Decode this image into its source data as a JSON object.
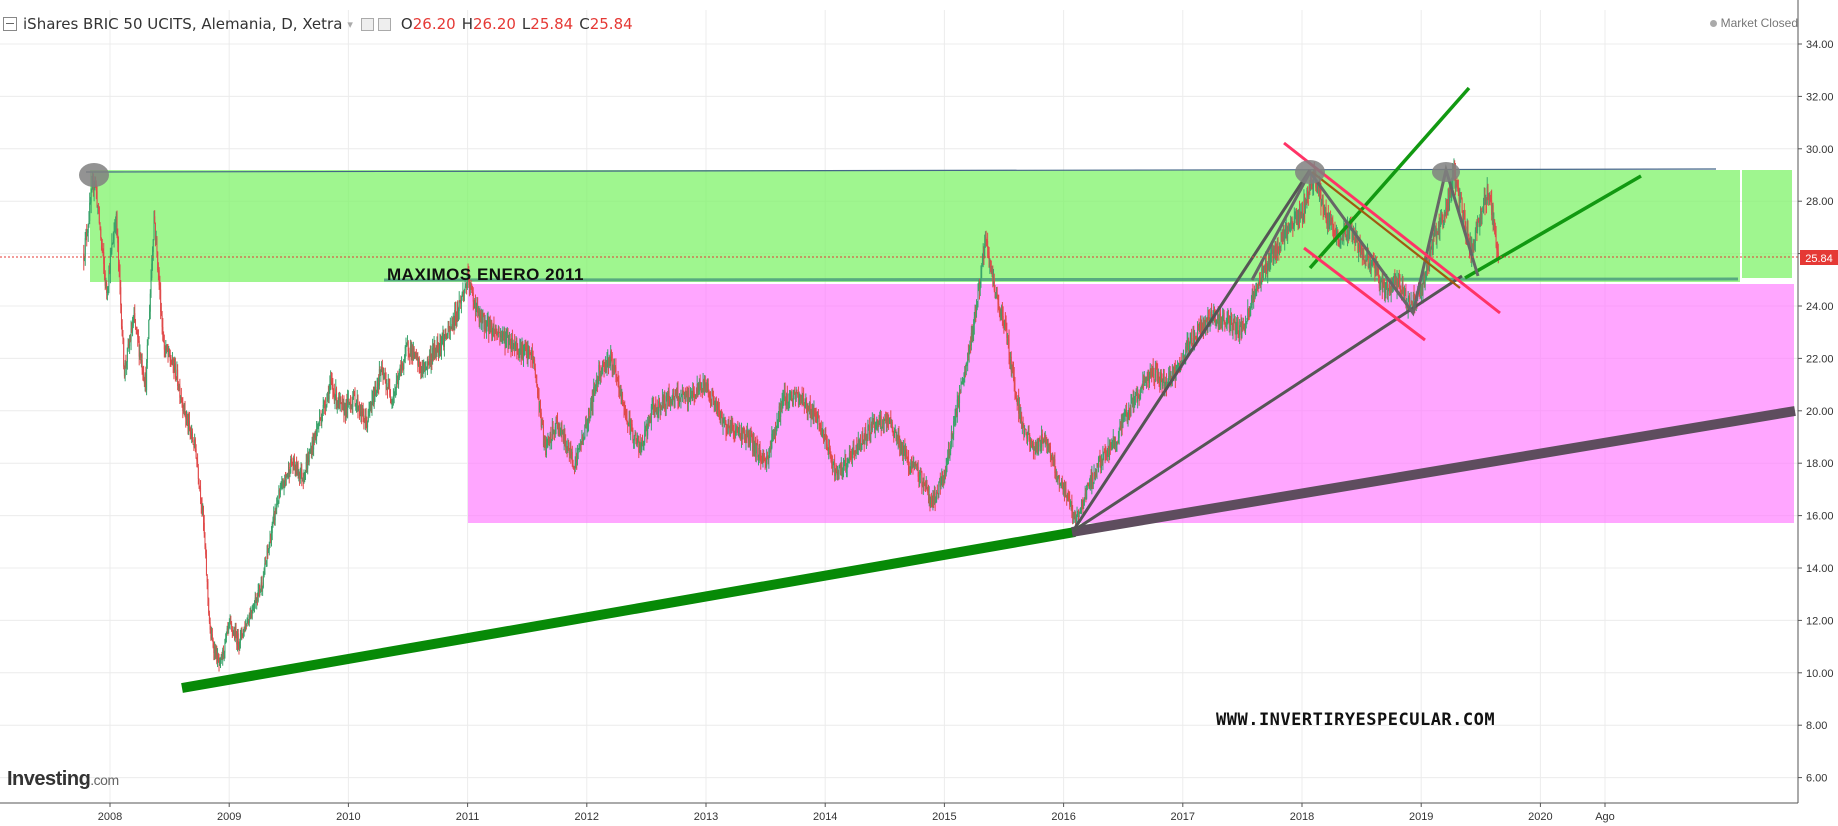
{
  "header": {
    "symbol": "iShares BRIC 50 UCITS, Alemania, D, Xetra",
    "caret": "▾",
    "o_label": "O",
    "o_value": "26.20",
    "h_label": "H",
    "h_value": "26.20",
    "l_label": "L",
    "l_value": "25.84",
    "c_label": "C",
    "c_value": "25.84"
  },
  "market_status": "Market Closed",
  "brand": {
    "name": "Investing",
    "suffix": ".com"
  },
  "chart_data": {
    "type": "candlestick",
    "x_tick_labels": [
      "2008",
      "2009",
      "2010",
      "2011",
      "2012",
      "2013",
      "2014",
      "2015",
      "2016",
      "2017",
      "2018",
      "2019",
      "2020",
      "Ago"
    ],
    "y_tick_labels": [
      "34.00",
      "32.00",
      "30.00",
      "28.00",
      "26.00",
      "24.00",
      "22.00",
      "20.00",
      "18.00",
      "16.00",
      "14.00",
      "12.00",
      "10.00",
      "8.00",
      "6.00"
    ],
    "ylim": [
      5.0,
      35.5
    ],
    "xlim": [
      2007.2,
      2021.6
    ],
    "last_price": "25.84",
    "series_anchors": [
      [
        2007.78,
        26.0
      ],
      [
        2007.87,
        29.0
      ],
      [
        2007.97,
        24.5
      ],
      [
        2008.05,
        27.5
      ],
      [
        2008.12,
        21.5
      ],
      [
        2008.2,
        23.5
      ],
      [
        2008.3,
        21.0
      ],
      [
        2008.37,
        27.5
      ],
      [
        2008.45,
        22.5
      ],
      [
        2008.55,
        21.5
      ],
      [
        2008.65,
        19.5
      ],
      [
        2008.72,
        18.5
      ],
      [
        2008.78,
        16.0
      ],
      [
        2008.84,
        11.5
      ],
      [
        2008.92,
        10.2
      ],
      [
        2009.0,
        11.8
      ],
      [
        2009.08,
        11.2
      ],
      [
        2009.17,
        12.2
      ],
      [
        2009.28,
        13.5
      ],
      [
        2009.4,
        16.5
      ],
      [
        2009.52,
        18.0
      ],
      [
        2009.62,
        17.5
      ],
      [
        2009.75,
        19.5
      ],
      [
        2009.85,
        21.0
      ],
      [
        2009.95,
        20.0
      ],
      [
        2010.05,
        20.5
      ],
      [
        2010.15,
        19.5
      ],
      [
        2010.27,
        21.5
      ],
      [
        2010.37,
        20.5
      ],
      [
        2010.5,
        22.5
      ],
      [
        2010.62,
        21.5
      ],
      [
        2010.75,
        22.5
      ],
      [
        2010.85,
        23.0
      ],
      [
        2011.0,
        25.0
      ],
      [
        2011.1,
        23.5
      ],
      [
        2011.25,
        23.0
      ],
      [
        2011.4,
        22.5
      ],
      [
        2011.55,
        22.0
      ],
      [
        2011.65,
        18.5
      ],
      [
        2011.75,
        19.5
      ],
      [
        2011.9,
        18.0
      ],
      [
        2012.0,
        19.5
      ],
      [
        2012.1,
        21.5
      ],
      [
        2012.2,
        22.0
      ],
      [
        2012.35,
        19.5
      ],
      [
        2012.45,
        18.5
      ],
      [
        2012.55,
        20.0
      ],
      [
        2012.7,
        20.5
      ],
      [
        2012.85,
        20.5
      ],
      [
        2013.0,
        21.0
      ],
      [
        2013.15,
        19.5
      ],
      [
        2013.35,
        19.0
      ],
      [
        2013.5,
        18.0
      ],
      [
        2013.65,
        20.5
      ],
      [
        2013.8,
        20.5
      ],
      [
        2013.95,
        19.5
      ],
      [
        2014.1,
        17.5
      ],
      [
        2014.25,
        18.5
      ],
      [
        2014.4,
        19.5
      ],
      [
        2014.55,
        19.5
      ],
      [
        2014.7,
        18.0
      ],
      [
        2014.8,
        17.5
      ],
      [
        2014.9,
        16.5
      ],
      [
        2015.0,
        17.5
      ],
      [
        2015.1,
        20.0
      ],
      [
        2015.2,
        22.0
      ],
      [
        2015.3,
        25.0
      ],
      [
        2015.35,
        26.5
      ],
      [
        2015.42,
        24.5
      ],
      [
        2015.5,
        23.5
      ],
      [
        2015.57,
        21.5
      ],
      [
        2015.65,
        19.5
      ],
      [
        2015.75,
        18.5
      ],
      [
        2015.85,
        19.0
      ],
      [
        2015.95,
        17.5
      ],
      [
        2016.05,
        16.5
      ],
      [
        2016.1,
        15.8
      ],
      [
        2016.2,
        17.0
      ],
      [
        2016.3,
        18.0
      ],
      [
        2016.45,
        19.0
      ],
      [
        2016.6,
        20.5
      ],
      [
        2016.75,
        21.5
      ],
      [
        2016.85,
        21.0
      ],
      [
        2016.95,
        21.5
      ],
      [
        2017.05,
        22.5
      ],
      [
        2017.2,
        23.5
      ],
      [
        2017.35,
        23.5
      ],
      [
        2017.5,
        23.0
      ],
      [
        2017.6,
        24.5
      ],
      [
        2017.75,
        26.0
      ],
      [
        2017.9,
        27.0
      ],
      [
        2018.0,
        27.5
      ],
      [
        2018.1,
        29.0
      ],
      [
        2018.2,
        27.5
      ],
      [
        2018.3,
        26.5
      ],
      [
        2018.4,
        27.0
      ],
      [
        2018.5,
        26.0
      ],
      [
        2018.6,
        25.5
      ],
      [
        2018.7,
        24.5
      ],
      [
        2018.8,
        25.0
      ],
      [
        2018.9,
        24.0
      ],
      [
        2019.0,
        24.5
      ],
      [
        2019.1,
        26.5
      ],
      [
        2019.2,
        27.5
      ],
      [
        2019.27,
        29.0
      ],
      [
        2019.35,
        27.5
      ],
      [
        2019.42,
        26.0
      ],
      [
        2019.5,
        27.5
      ],
      [
        2019.57,
        28.5
      ],
      [
        2019.65,
        25.84
      ]
    ]
  },
  "annotations": {
    "max_label": "MAXIMOS ENERO 2011",
    "watermark": "WWW.INVERTIRYESPECULAR.COM"
  }
}
